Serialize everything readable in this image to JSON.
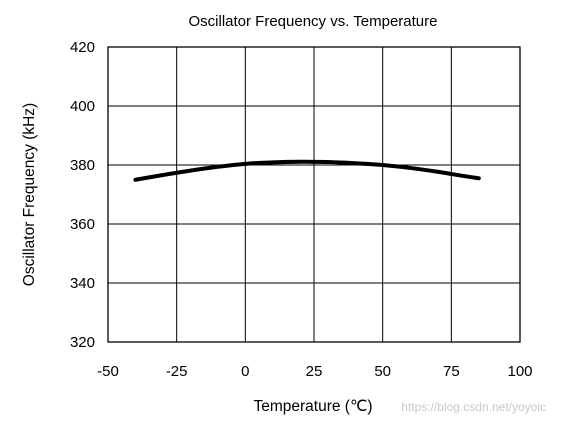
{
  "chart_data": {
    "type": "line",
    "title": "Oscillator Frequency vs. Temperature",
    "xlabel": "Temperature (℃)",
    "ylabel": "Oscillator Frequency (kHz)",
    "xlim": [
      -50,
      100
    ],
    "ylim": [
      320,
      420
    ],
    "xticks": [
      "-50",
      "-25",
      "0",
      "25",
      "50",
      "75",
      "100"
    ],
    "yticks": [
      "420",
      "400",
      "380",
      "360",
      "340",
      "320"
    ],
    "grid": true,
    "legend": "none",
    "line_color": "#000000",
    "series": [
      {
        "x": [
          -40,
          -30,
          -20,
          -10,
          0,
          10,
          20,
          30,
          40,
          50,
          60,
          70,
          80,
          85
        ],
        "values": [
          375.0,
          376.6,
          378.1,
          379.4,
          380.4,
          380.9,
          381.1,
          381.0,
          380.6,
          380.0,
          379.0,
          377.7,
          376.2,
          375.5
        ]
      }
    ]
  },
  "watermark": "https://blog.csdn.net/yoyoic"
}
